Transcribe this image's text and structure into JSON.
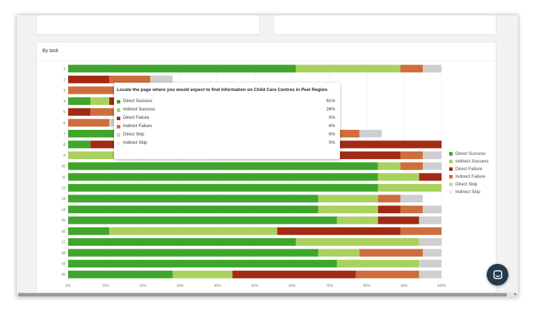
{
  "panel": {
    "title": "By task"
  },
  "colors": {
    "direct_success": "#3fa62c",
    "indirect_success": "#a9d15e",
    "direct_failure": "#a32a14",
    "indirect_failure": "#cd6e3c",
    "direct_skip": "#cfcfcf",
    "indirect_skip": "#ececec"
  },
  "chart_data": {
    "type": "bar",
    "orientation": "horizontal",
    "stacked": true,
    "categories": [
      "1",
      "2",
      "3",
      "4",
      "5",
      "6",
      "7",
      "8",
      "9",
      "10",
      "11",
      "12",
      "13",
      "14",
      "15",
      "16",
      "17",
      "18",
      "19",
      "20"
    ],
    "series": [
      {
        "name": "Direct Success",
        "values": [
          61,
          0,
          0,
          6,
          0,
          0,
          55,
          6,
          0,
          83,
          83,
          83,
          67,
          67,
          72,
          11,
          61,
          67,
          72,
          28
        ]
      },
      {
        "name": "Indirect Success",
        "values": [
          28,
          0,
          0,
          5,
          0,
          0,
          17,
          0,
          39,
          6,
          11,
          17,
          16,
          16,
          11,
          45,
          33,
          11,
          22,
          16
        ]
      },
      {
        "name": "Direct Failure",
        "values": [
          0,
          11,
          0,
          6,
          6,
          0,
          0,
          94,
          50,
          0,
          6,
          0,
          0,
          6,
          11,
          33,
          0,
          0,
          0,
          33
        ]
      },
      {
        "name": "Indirect Failure",
        "values": [
          6,
          11,
          17,
          11,
          17,
          11,
          6,
          0,
          6,
          6,
          0,
          0,
          6,
          6,
          0,
          11,
          0,
          17,
          0,
          17
        ]
      },
      {
        "name": "Direct Skip",
        "values": [
          6,
          6,
          6,
          6,
          6,
          6,
          6,
          0,
          6,
          6,
          0,
          0,
          6,
          6,
          6,
          0,
          6,
          6,
          6,
          6
        ]
      },
      {
        "name": "Indirect Skip",
        "values": [
          0,
          0,
          0,
          0,
          0,
          0,
          0,
          0,
          0,
          0,
          0,
          0,
          0,
          0,
          0,
          0,
          0,
          0,
          0,
          0
        ]
      }
    ],
    "x_ticks": [
      "0%",
      "10%",
      "20%",
      "30%",
      "40%",
      "50%",
      "60%",
      "70%",
      "80%",
      "90%",
      "100%"
    ],
    "xlim": [
      0,
      100
    ],
    "legend_position": "right"
  },
  "tooltip": {
    "title": "Locate the page where you would expect to find information on Child Care Centres in Peel Region.",
    "rows": [
      {
        "label": "Direct Success",
        "value": "61%",
        "color": "#3fa62c"
      },
      {
        "label": "Indirect Success",
        "value": "28%",
        "color": "#a9d15e"
      },
      {
        "label": "Direct Failure",
        "value": "0%",
        "color": "#a32a14"
      },
      {
        "label": "Indirect Failure",
        "value": "6%",
        "color": "#cd6e3c"
      },
      {
        "label": "Direct Skip",
        "value": "6%",
        "color": "#cfcfcf"
      },
      {
        "label": "Indirect Skip",
        "value": "0%",
        "color": "#ececec"
      }
    ]
  },
  "legend": [
    {
      "label": "Direct Success",
      "color": "#3fa62c"
    },
    {
      "label": "Indirect Success",
      "color": "#a9d15e"
    },
    {
      "label": "Direct Failure",
      "color": "#a32a14"
    },
    {
      "label": "Indirect Failure",
      "color": "#cd6e3c"
    },
    {
      "label": "Direct Skip",
      "color": "#cfcfcf"
    },
    {
      "label": "Indirect Skip",
      "color": "#ececec"
    }
  ],
  "chat": {
    "icon": "chat-icon"
  }
}
